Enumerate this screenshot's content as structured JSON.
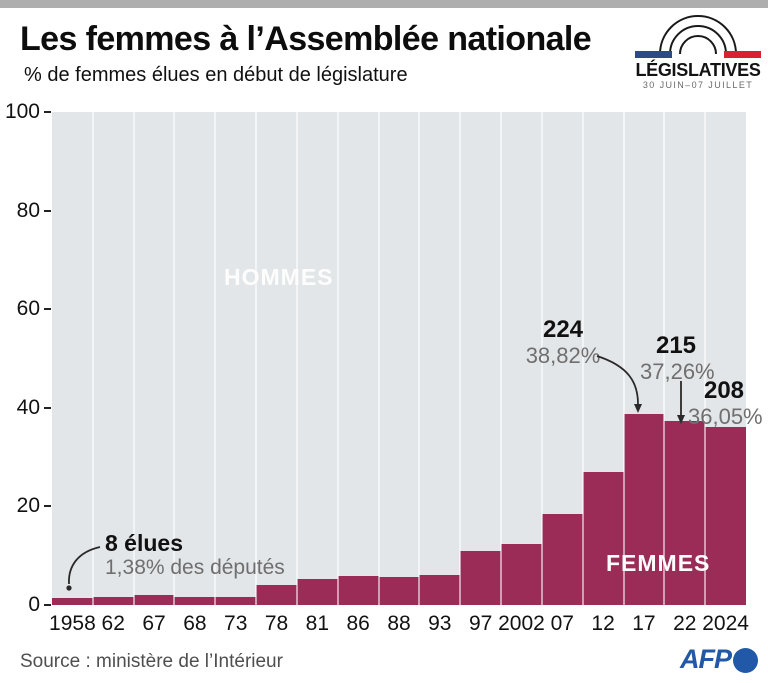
{
  "header": {
    "title": "Les femmes à l’Assemblée nationale",
    "subtitle": "% de femmes élues en début de législature",
    "event_logo": {
      "name": "legislatives-arches-logo",
      "line1": "LÉGISLATIVES",
      "line2": "30 JUIN–07 JUILLET",
      "arc_color": "#1a1a1a",
      "blue_bar": "#2b4a86",
      "red_bar": "#d6232e"
    }
  },
  "chart_data": {
    "type": "bar",
    "title": "Les femmes à l’Assemblée nationale",
    "subtitle": "% de femmes élues en début de législature",
    "categories": [
      "1958",
      "62",
      "67",
      "68",
      "73",
      "78",
      "81",
      "86",
      "88",
      "93",
      "97",
      "2002",
      "07",
      "12",
      "17",
      "22",
      "2024"
    ],
    "values": [
      1.38,
      1.7,
      2.1,
      1.6,
      1.6,
      4.0,
      5.3,
      5.9,
      5.7,
      6.1,
      10.9,
      12.3,
      18.5,
      26.9,
      38.82,
      37.26,
      36.05
    ],
    "ylim": [
      0,
      100
    ],
    "yticks": [
      0,
      20,
      40,
      60,
      80,
      100
    ],
    "grid": "vertical-white-separators",
    "bar_color": "#9a2c57",
    "plot_bg": "#e3e6e8",
    "region_labels": [
      {
        "text": "HOMMES",
        "area": "background-above-bars"
      },
      {
        "text": "FEMMES",
        "area": "inside-bars-right"
      }
    ],
    "annotations": [
      {
        "category": "1958",
        "bold": "8 élues",
        "sub": "1,38% des députés",
        "arrow": "curved-dot"
      },
      {
        "category": "17",
        "bold": "224",
        "sub": "38,82%",
        "arrow": "curved-arrowhead"
      },
      {
        "category": "22",
        "bold": "215",
        "sub": "37,26%",
        "arrow": "straight-arrowhead"
      },
      {
        "category": "2024",
        "bold": "208",
        "sub": "36,05%",
        "arrow": "none"
      }
    ]
  },
  "labels": {
    "hommes": "HOMMES",
    "femmes": "FEMMES"
  },
  "annotations": {
    "a1958": {
      "bold": "8 élues",
      "sub": "1,38% des députés"
    },
    "a2017": {
      "bold": "224",
      "sub": "38,82%"
    },
    "a2022": {
      "bold": "215",
      "sub": "37,26%"
    },
    "a2024": {
      "bold": "208",
      "sub": "36,05%"
    }
  },
  "footer": {
    "source": "Source : ministère de l’Intérieur",
    "afp": "AFP"
  }
}
